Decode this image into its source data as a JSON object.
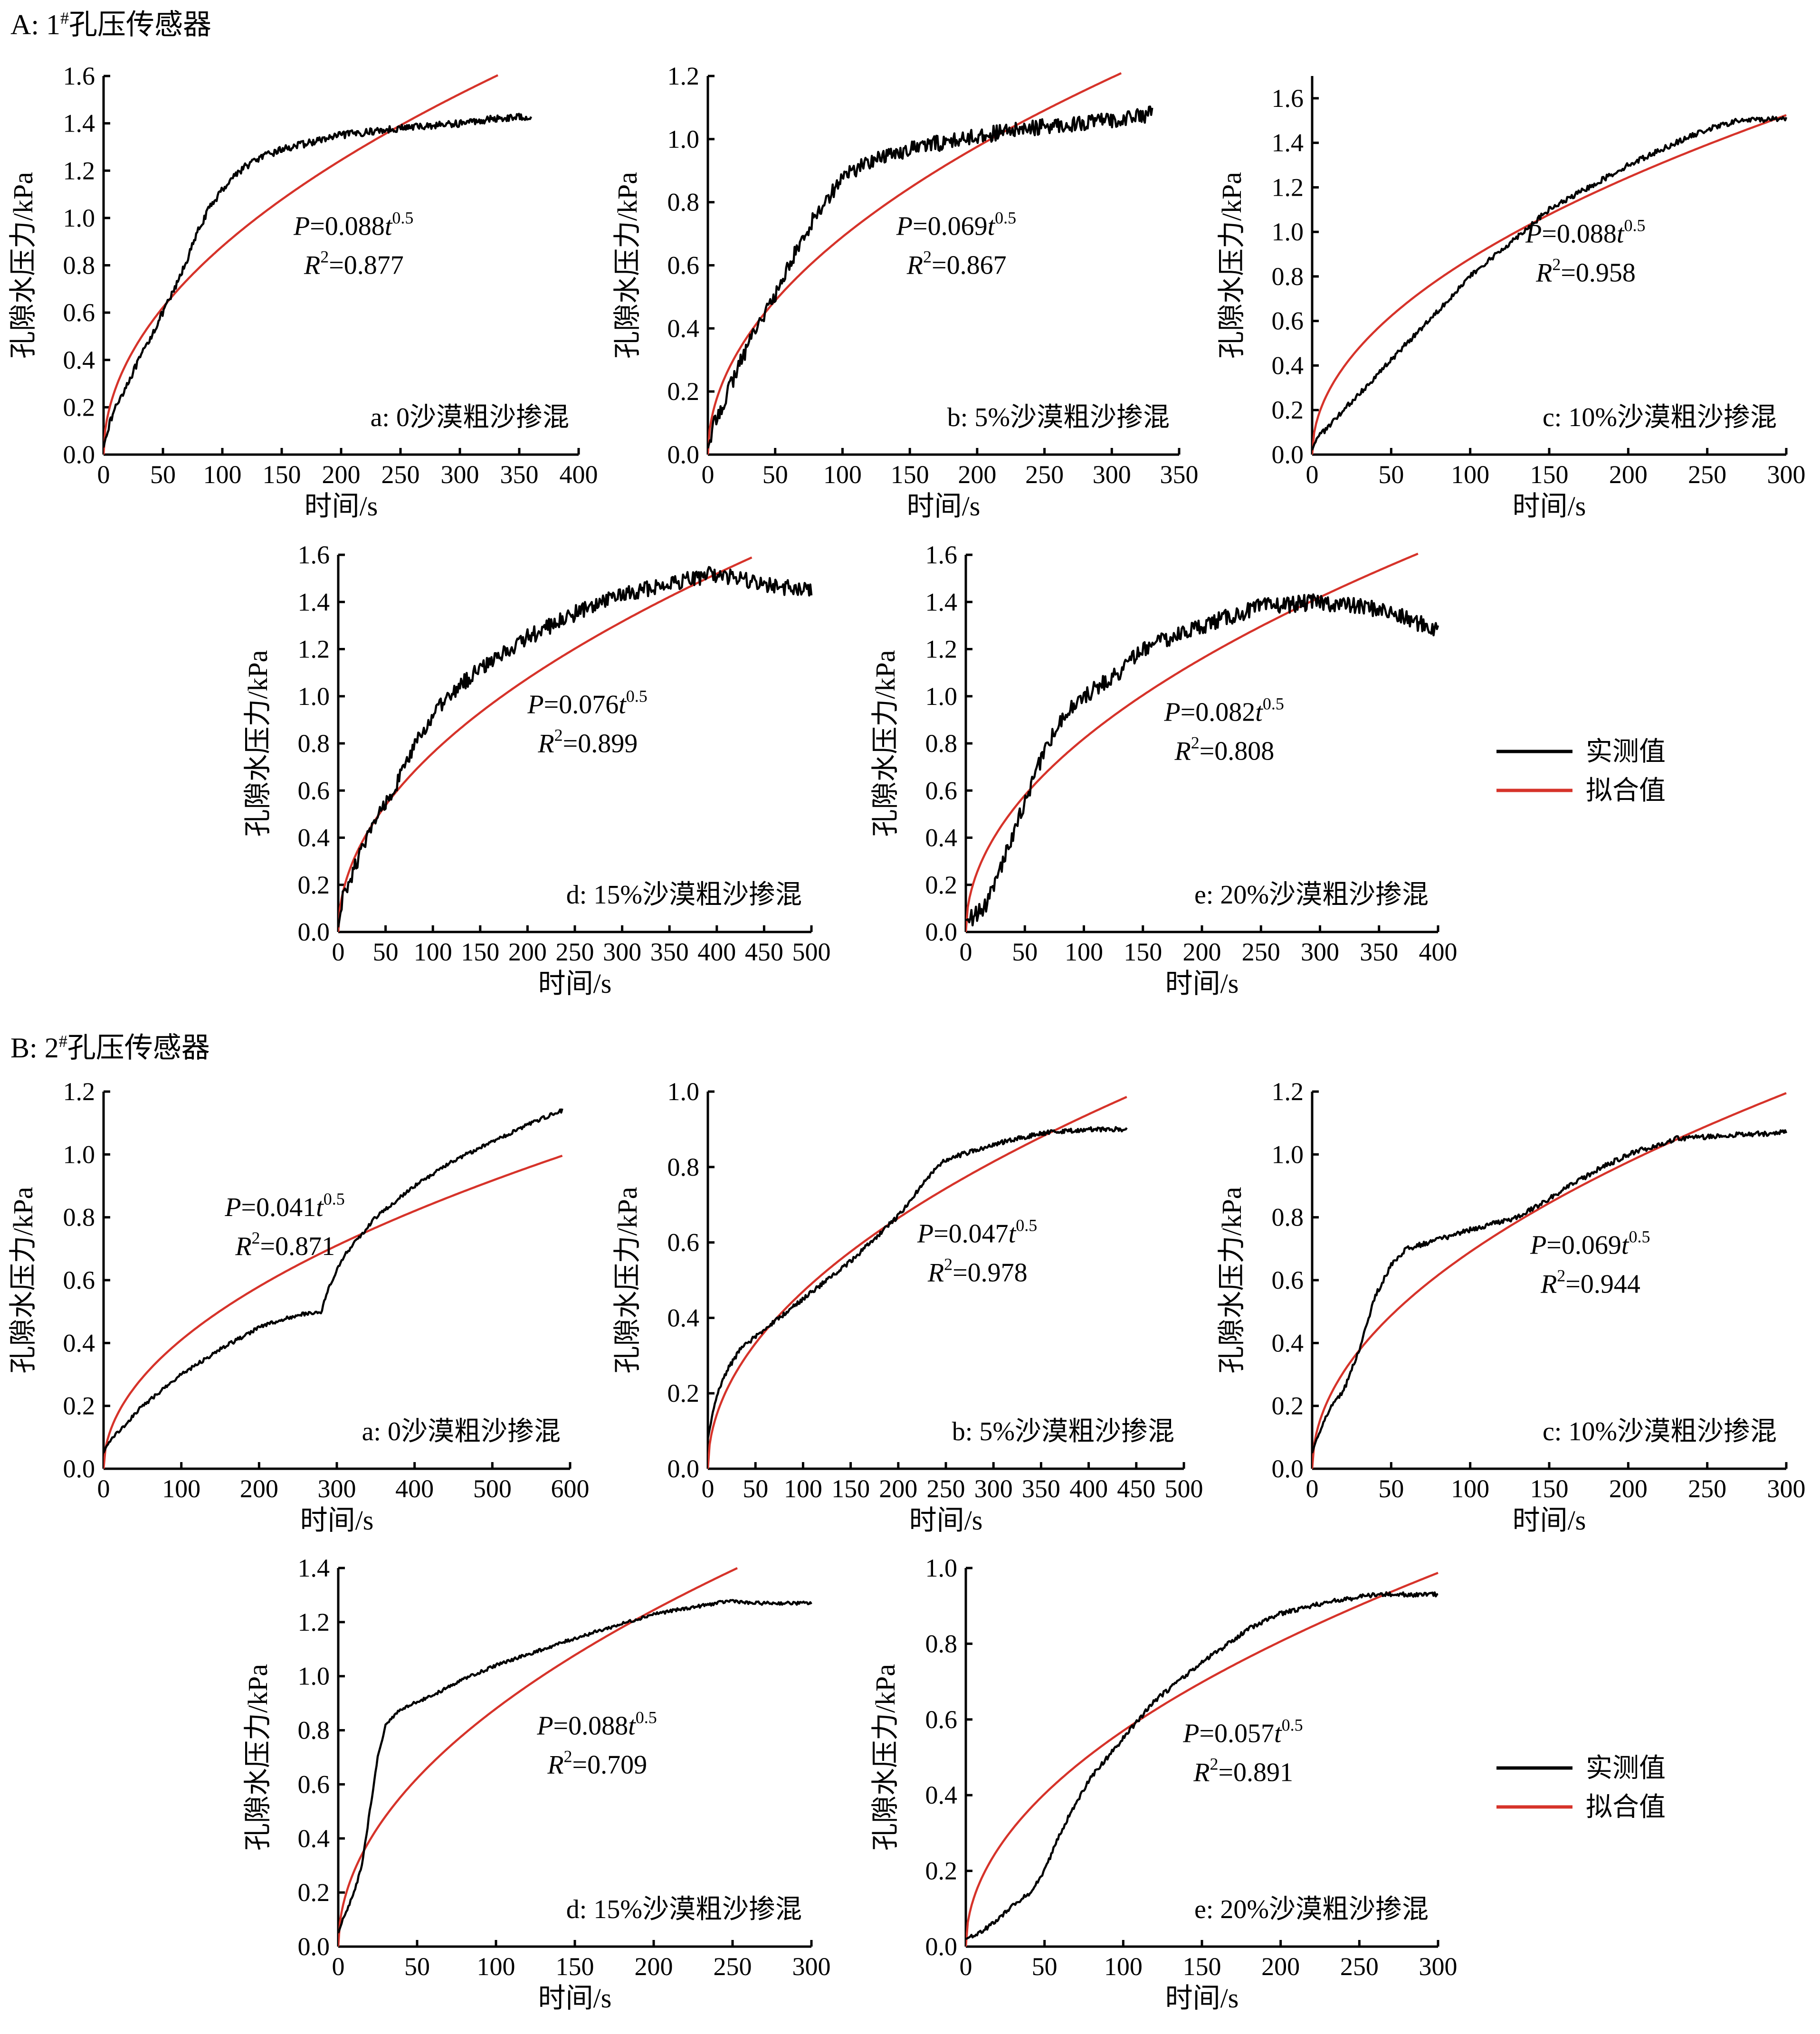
{
  "colors": {
    "measured": "#000000",
    "fitted": "#d6332a"
  },
  "sections": [
    {
      "title": "A: 1#孔压传感器",
      "title_main": "A: 1",
      "title_sup": "#",
      "title_rest": "孔压传感器"
    },
    {
      "title": "B: 2#孔压传感器",
      "title_main": "B: 2",
      "title_sup": "#",
      "title_rest": "孔压传感器"
    }
  ],
  "legend": {
    "measured_label": "实测值",
    "fitted_label": "拟合值"
  },
  "chart_data": [
    {
      "id": "A-a",
      "section": 0,
      "type": "line",
      "panel_label": "a: 0沙漠粗沙掺混",
      "xlabel": "时间/s",
      "ylabel": "孔隙水压力/kPa",
      "xlim": [
        0,
        400
      ],
      "xticks": [
        0,
        50,
        100,
        150,
        200,
        250,
        300,
        350,
        400
      ],
      "ylim": [
        0,
        1.6
      ],
      "yticks": [
        "0.0",
        "0.2",
        "0.4",
        "0.6",
        "0.8",
        "1.0",
        "1.2",
        "1.4",
        "1.6"
      ],
      "fit": {
        "coef": "0.088",
        "exponent": "0.5",
        "r2": "0.877",
        "x_end": 332
      },
      "measured": {
        "x": [
          0,
          3,
          10,
          20,
          30,
          40,
          50,
          60,
          70,
          80,
          90,
          100,
          110,
          120,
          130,
          150,
          175,
          200,
          250,
          300,
          330,
          360
        ],
        "y": [
          0.03,
          0.1,
          0.2,
          0.3,
          0.4,
          0.5,
          0.6,
          0.7,
          0.82,
          0.95,
          1.05,
          1.12,
          1.18,
          1.22,
          1.25,
          1.29,
          1.32,
          1.35,
          1.38,
          1.4,
          1.42,
          1.43
        ],
        "noise": 0.015
      },
      "series": [
        {
          "name": "实测值"
        },
        {
          "name": "拟合值"
        }
      ]
    },
    {
      "id": "A-b",
      "section": 0,
      "type": "line",
      "panel_label": "b: 5%沙漠粗沙掺混",
      "xlabel": "时间/s",
      "ylabel": "孔隙水压力/kPa",
      "xlim": [
        0,
        350
      ],
      "xticks": [
        0,
        50,
        100,
        150,
        200,
        250,
        300,
        350
      ],
      "ylim": [
        0,
        1.2
      ],
      "yticks": [
        "0.0",
        "0.2",
        "0.4",
        "0.6",
        "0.8",
        "1.0",
        "1.2"
      ],
      "fit": {
        "coef": "0.069",
        "exponent": "0.5",
        "r2": "0.867",
        "x_end": 307
      },
      "measured": {
        "x": [
          0,
          5,
          15,
          25,
          35,
          50,
          60,
          70,
          80,
          100,
          120,
          150,
          175,
          200,
          250,
          300,
          330
        ],
        "y": [
          0.02,
          0.1,
          0.2,
          0.3,
          0.4,
          0.5,
          0.6,
          0.68,
          0.76,
          0.88,
          0.93,
          0.97,
          0.99,
          1.01,
          1.04,
          1.06,
          1.08
        ],
        "noise": 0.025
      },
      "series": [
        {
          "name": "实测值"
        },
        {
          "name": "拟合值"
        }
      ]
    },
    {
      "id": "A-c",
      "section": 0,
      "type": "line",
      "panel_label": "c: 10%沙漠粗沙掺混",
      "xlabel": "时间/s",
      "ylabel": "孔隙水压力/kPa",
      "xlim": [
        0,
        300
      ],
      "xticks": [
        0,
        50,
        100,
        150,
        200,
        250,
        300
      ],
      "ylim": [
        0,
        1.7
      ],
      "yticks": [
        "0.0",
        "0.2",
        "0.4",
        "0.6",
        "0.8",
        "1.0",
        "1.2",
        "1.4",
        "1.6"
      ],
      "fit": {
        "coef": "0.088",
        "exponent": "0.5",
        "r2": "0.958",
        "x_end": 300
      },
      "measured": {
        "x": [
          0,
          3,
          10,
          20,
          40,
          60,
          80,
          100,
          130,
          150,
          180,
          200,
          230,
          250,
          270,
          300
        ],
        "y": [
          0.02,
          0.08,
          0.12,
          0.2,
          0.35,
          0.5,
          0.65,
          0.8,
          0.98,
          1.1,
          1.22,
          1.3,
          1.4,
          1.46,
          1.5,
          1.51
        ],
        "noise": 0.012
      },
      "series": [
        {
          "name": "实测值"
        },
        {
          "name": "拟合值"
        }
      ]
    },
    {
      "id": "A-d",
      "section": 0,
      "type": "line",
      "panel_label": "d: 15%沙漠粗沙掺混",
      "xlabel": "时间/s",
      "ylabel": "孔隙水压力/kPa",
      "xlim": [
        0,
        500
      ],
      "xticks": [
        0,
        50,
        100,
        150,
        200,
        250,
        300,
        350,
        400,
        450,
        500
      ],
      "ylim": [
        0,
        1.6
      ],
      "yticks": [
        "0.0",
        "0.2",
        "0.4",
        "0.6",
        "0.8",
        "1.0",
        "1.2",
        "1.4",
        "1.6"
      ],
      "fit": {
        "coef": "0.076",
        "exponent": "0.5",
        "r2": "0.899",
        "x_end": 437
      },
      "measured": {
        "x": [
          0,
          5,
          20,
          40,
          60,
          80,
          100,
          130,
          150,
          200,
          250,
          300,
          350,
          400,
          450,
          500
        ],
        "y": [
          0.02,
          0.15,
          0.3,
          0.48,
          0.62,
          0.78,
          0.92,
          1.05,
          1.12,
          1.25,
          1.35,
          1.43,
          1.48,
          1.52,
          1.47,
          1.45
        ],
        "noise": 0.035
      },
      "series": [
        {
          "name": "实测值"
        },
        {
          "name": "拟合值"
        }
      ]
    },
    {
      "id": "A-e",
      "section": 0,
      "type": "line",
      "panel_label": "e: 20%沙漠粗沙掺混",
      "xlabel": "时间/s",
      "ylabel": "孔隙水压力/kPa",
      "xlim": [
        0,
        400
      ],
      "xticks": [
        0,
        50,
        100,
        150,
        200,
        250,
        300,
        350,
        400
      ],
      "ylim": [
        0,
        1.6
      ],
      "yticks": [
        "0.0",
        "0.2",
        "0.4",
        "0.6",
        "0.8",
        "1.0",
        "1.2",
        "1.4",
        "1.6"
      ],
      "fit": {
        "coef": "0.082",
        "exponent": "0.5",
        "r2": "0.808",
        "x_end": 383
      },
      "measured": {
        "x": [
          0,
          5,
          15,
          25,
          35,
          50,
          65,
          80,
          100,
          130,
          150,
          200,
          250,
          300,
          350,
          400
        ],
        "y": [
          0.05,
          0.06,
          0.1,
          0.2,
          0.35,
          0.55,
          0.75,
          0.9,
          1.0,
          1.1,
          1.2,
          1.3,
          1.38,
          1.4,
          1.37,
          1.28
        ],
        "noise": 0.035
      },
      "series": [
        {
          "name": "实测值"
        },
        {
          "name": "拟合值"
        }
      ]
    },
    {
      "id": "B-a",
      "section": 1,
      "type": "line",
      "panel_label": "a: 0沙漠粗沙掺混",
      "xlabel": "时间/s",
      "ylabel": "孔隙水压力/kPa",
      "xlim": [
        0,
        600
      ],
      "xticks": [
        0,
        100,
        200,
        300,
        400,
        500,
        600
      ],
      "ylim": [
        0,
        1.2
      ],
      "yticks": [
        "0.0",
        "0.2",
        "0.4",
        "0.6",
        "0.8",
        "1.0",
        "1.2"
      ],
      "fit": {
        "coef": "0.041",
        "exponent": "0.5",
        "r2": "0.871",
        "x_end": 590
      },
      "measured": {
        "x": [
          0,
          5,
          20,
          50,
          100,
          150,
          200,
          250,
          280,
          290,
          310,
          350,
          400,
          450,
          500,
          550,
          590
        ],
        "y": [
          0.05,
          0.08,
          0.12,
          0.2,
          0.3,
          0.38,
          0.45,
          0.49,
          0.5,
          0.58,
          0.68,
          0.8,
          0.9,
          0.98,
          1.04,
          1.1,
          1.14
        ],
        "noise": 0.006
      },
      "series": [
        {
          "name": "实测值"
        },
        {
          "name": "拟合值"
        }
      ]
    },
    {
      "id": "B-b",
      "section": 1,
      "type": "line",
      "panel_label": "b: 5%沙漠粗沙掺混",
      "xlabel": "时间/s",
      "ylabel": "孔隙水压力/kPa",
      "xlim": [
        0,
        500
      ],
      "xticks": [
        0,
        50,
        100,
        150,
        200,
        250,
        300,
        350,
        400,
        450,
        500
      ],
      "ylim": [
        0,
        1.0
      ],
      "yticks": [
        "0.0",
        "0.2",
        "0.4",
        "0.6",
        "0.8",
        "1.0"
      ],
      "fit": {
        "coef": "0.047",
        "exponent": "0.5",
        "r2": "0.978",
        "x_end": 440
      },
      "measured": {
        "x": [
          0,
          3,
          10,
          20,
          35,
          50,
          100,
          150,
          200,
          230,
          250,
          300,
          350,
          400,
          440
        ],
        "y": [
          0.08,
          0.12,
          0.2,
          0.26,
          0.32,
          0.35,
          0.45,
          0.55,
          0.67,
          0.77,
          0.82,
          0.86,
          0.89,
          0.9,
          0.9
        ],
        "noise": 0.006
      },
      "series": [
        {
          "name": "实测值"
        },
        {
          "name": "拟合值"
        }
      ]
    },
    {
      "id": "B-c",
      "section": 1,
      "type": "line",
      "panel_label": "c: 10%沙漠粗沙掺混",
      "xlabel": "时间/s",
      "ylabel": "孔隙水压力/kPa",
      "xlim": [
        0,
        300
      ],
      "xticks": [
        0,
        50,
        100,
        150,
        200,
        250,
        300
      ],
      "ylim": [
        0,
        1.2
      ],
      "yticks": [
        "0.0",
        "0.2",
        "0.4",
        "0.6",
        "0.8",
        "1.0",
        "1.2"
      ],
      "fit": {
        "coef": "0.069",
        "exponent": "0.5",
        "r2": "0.944",
        "x_end": 300
      },
      "measured": {
        "x": [
          0,
          3,
          10,
          20,
          30,
          40,
          50,
          60,
          80,
          100,
          130,
          150,
          180,
          200,
          230,
          260,
          300
        ],
        "y": [
          0.05,
          0.1,
          0.18,
          0.25,
          0.38,
          0.55,
          0.65,
          0.7,
          0.73,
          0.76,
          0.8,
          0.86,
          0.95,
          1.0,
          1.05,
          1.06,
          1.07
        ],
        "noise": 0.008
      },
      "series": [
        {
          "name": "实测值"
        },
        {
          "name": "拟合值"
        }
      ]
    },
    {
      "id": "B-d",
      "section": 1,
      "type": "line",
      "panel_label": "d: 15%沙漠粗沙掺混",
      "xlabel": "时间/s",
      "ylabel": "孔隙水压力/kPa",
      "xlim": [
        0,
        300
      ],
      "xticks": [
        0,
        50,
        100,
        150,
        200,
        250,
        300
      ],
      "ylim": [
        0,
        1.4
      ],
      "yticks": [
        "0.0",
        "0.2",
        "0.4",
        "0.6",
        "0.8",
        "1.0",
        "1.2",
        "1.4"
      ],
      "fit": {
        "coef": "0.088",
        "exponent": "0.5",
        "r2": "0.709",
        "x_end": 253
      },
      "measured": {
        "x": [
          0,
          3,
          10,
          15,
          20,
          25,
          30,
          40,
          60,
          80,
          100,
          150,
          200,
          250,
          260,
          300
        ],
        "y": [
          0.05,
          0.1,
          0.2,
          0.3,
          0.5,
          0.7,
          0.82,
          0.88,
          0.93,
          0.99,
          1.04,
          1.14,
          1.23,
          1.28,
          1.27,
          1.27
        ],
        "noise": 0.006
      },
      "series": [
        {
          "name": "实测值"
        },
        {
          "name": "拟合值"
        }
      ]
    },
    {
      "id": "B-e",
      "section": 1,
      "type": "line",
      "panel_label": "e: 20%沙漠粗沙掺混",
      "xlabel": "时间/s",
      "ylabel": "孔隙水压力/kPa",
      "xlim": [
        0,
        300
      ],
      "xticks": [
        0,
        50,
        100,
        150,
        200,
        250,
        300
      ],
      "ylim": [
        0,
        1.0
      ],
      "yticks": [
        "0.0",
        "0.2",
        "0.4",
        "0.6",
        "0.8",
        "1.0"
      ],
      "fit": {
        "coef": "0.057",
        "exponent": "0.5",
        "r2": "0.891",
        "x_end": 300
      },
      "measured": {
        "x": [
          0,
          10,
          20,
          30,
          40,
          50,
          60,
          70,
          80,
          100,
          120,
          150,
          180,
          200,
          230,
          260,
          300
        ],
        "y": [
          0.02,
          0.04,
          0.07,
          0.11,
          0.14,
          0.2,
          0.3,
          0.38,
          0.45,
          0.55,
          0.65,
          0.75,
          0.84,
          0.88,
          0.91,
          0.93,
          0.93
        ],
        "noise": 0.006
      },
      "series": [
        {
          "name": "实测值"
        },
        {
          "name": "拟合值"
        }
      ]
    }
  ]
}
